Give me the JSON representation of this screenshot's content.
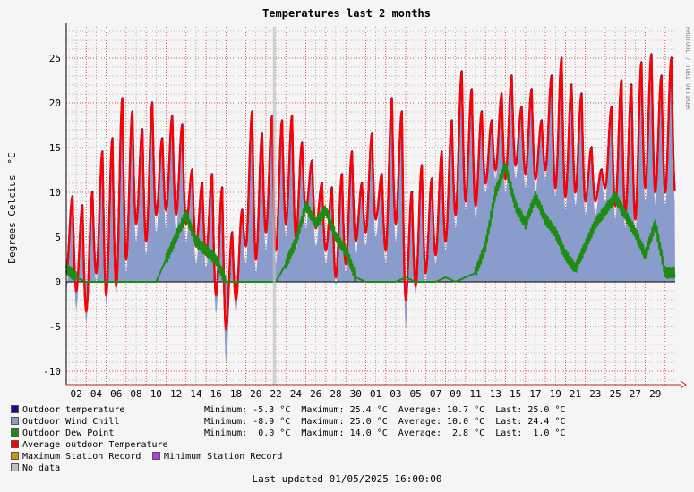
{
  "chart_data": {
    "type": "line",
    "title": "Temperatures last 2 months",
    "ylabel": "Degrees Celcius",
    "yunit": "°C",
    "watermark": "RRDTOOL / TOBI OETIKER",
    "ylim": [
      -11.5,
      28.5
    ],
    "yticks": [
      "-10",
      "-5",
      "0",
      "5",
      "10",
      "15",
      "20",
      "25"
    ],
    "xticks": [
      "02",
      "04",
      "06",
      "08",
      "10",
      "12",
      "14",
      "16",
      "18",
      "20",
      "22",
      "24",
      "26",
      "28",
      "30",
      "01",
      "03",
      "05",
      "07",
      "09",
      "11",
      "13",
      "15",
      "17",
      "19",
      "21",
      "23",
      "25",
      "27",
      "29"
    ],
    "days": 61,
    "colors": {
      "outdoor_temperature": "#1a0a8c",
      "wind_chill": "#8a9ccc",
      "dew_point": "#1e8c12",
      "average_outdoor": "#ff0000",
      "max_record": "#c8960a",
      "min_record": "#b040e0",
      "no_data": "#c0c0c0",
      "grid_major": "#cc2020",
      "grid_minor": "#a05050",
      "plot_bg": "#f5f5f5"
    },
    "series": [
      {
        "name": "Outdoor temperature",
        "daily_min": [
          1.0,
          -1.0,
          -3.3,
          1.0,
          -1.5,
          -0.5,
          2.5,
          6.5,
          4.5,
          7.5,
          8.0,
          7.5,
          6.5,
          4.0,
          3.0,
          -1.5,
          -5.3,
          -2.0,
          4.0,
          2.5,
          5.5,
          3.5,
          6.5,
          5.0,
          8.0,
          6.0,
          3.5,
          0.5,
          2.0,
          4.5,
          5.5,
          7.0,
          3.5,
          6.5,
          -2.0,
          -0.5,
          1.0,
          3.0,
          4.5,
          7.5,
          9.0,
          8.5,
          11.0,
          12.5,
          11.5,
          13.0,
          12.0,
          11.5,
          12.5,
          10.5,
          9.5,
          10.0,
          9.0,
          9.0,
          10.5,
          8.5,
          7.5,
          7.0,
          10.5,
          10.0,
          10.0
        ],
        "daily_max": [
          9.5,
          8.5,
          10.0,
          14.5,
          16.0,
          20.5,
          19.0,
          17.0,
          20.0,
          16.0,
          18.5,
          17.5,
          12.5,
          11.0,
          12.0,
          10.5,
          5.5,
          8.0,
          19.0,
          16.5,
          18.5,
          18.0,
          18.5,
          15.5,
          13.5,
          11.0,
          10.5,
          12.0,
          14.5,
          11.0,
          16.5,
          12.0,
          20.5,
          19.0,
          10.0,
          13.0,
          11.5,
          14.5,
          18.0,
          23.5,
          21.5,
          19.0,
          18.0,
          21.0,
          23.0,
          19.5,
          21.5,
          18.0,
          23.0,
          25.0,
          22.0,
          21.0,
          15.0,
          12.5,
          19.5,
          22.5,
          22.0,
          24.5,
          25.4,
          23.0,
          25.0
        ],
        "minimum": "-5.3 °C",
        "maximum": "25.4 °C",
        "average": "10.7 °C",
        "last": "25.0 °C"
      },
      {
        "name": "Outdoor Wind Chill",
        "daily_min": [
          -1.0,
          -3.0,
          -4.5,
          0.0,
          -2.5,
          -1.5,
          1.0,
          4.5,
          3.0,
          5.5,
          6.0,
          5.5,
          4.5,
          2.0,
          1.5,
          -3.5,
          -8.9,
          -3.5,
          2.0,
          1.0,
          3.5,
          2.0,
          5.0,
          3.5,
          6.0,
          4.0,
          2.0,
          -0.5,
          1.0,
          3.0,
          4.0,
          5.0,
          2.0,
          4.5,
          -5.0,
          -1.5,
          0.0,
          2.0,
          3.5,
          6.0,
          8.0,
          7.0,
          10.0,
          11.5,
          10.0,
          11.5,
          10.5,
          10.0,
          11.5,
          9.5,
          8.0,
          8.5,
          7.5,
          7.5,
          9.0,
          7.0,
          6.0,
          5.5,
          9.0,
          8.5,
          8.5
        ],
        "minimum": "-8.9 °C",
        "maximum": "25.0 °C",
        "average": "10.0 °C",
        "last": "24.4 °C"
      },
      {
        "name": "Outdoor Dew Point",
        "daily": [
          1.5,
          0.5,
          0.0,
          0.0,
          0.0,
          0.0,
          0.0,
          0.0,
          0.0,
          0.0,
          2.5,
          5.0,
          7.5,
          4.5,
          3.5,
          2.5,
          0.0,
          0.0,
          0.0,
          0.0,
          0.0,
          0.0,
          2.0,
          4.5,
          8.5,
          6.5,
          8.0,
          5.0,
          3.5,
          0.5,
          0.0,
          0.0,
          0.0,
          0.0,
          0.5,
          0.0,
          0.0,
          0.0,
          0.5,
          0.0,
          0.5,
          1.0,
          4.0,
          10.0,
          13.0,
          8.5,
          6.5,
          9.5,
          7.0,
          5.5,
          3.0,
          1.5,
          4.0,
          6.5,
          8.0,
          9.5,
          7.5,
          5.5,
          3.0,
          6.5,
          1.0
        ],
        "minimum": "0.0 °C",
        "maximum": "14.0 °C",
        "average": "2.8 °C",
        "last": "1.0 °C"
      },
      {
        "name": "Average outdoor Temperature"
      },
      {
        "name": "Maximum Station Record"
      },
      {
        "name": "Minimum Station Record"
      },
      {
        "name": "No data"
      }
    ]
  },
  "stats_labels": {
    "minimum": "Minimum:",
    "maximum": "Maximum:",
    "average": "Average:",
    "last": "Last:"
  },
  "footer": "Last updated 01/05/2025 16:00:00"
}
